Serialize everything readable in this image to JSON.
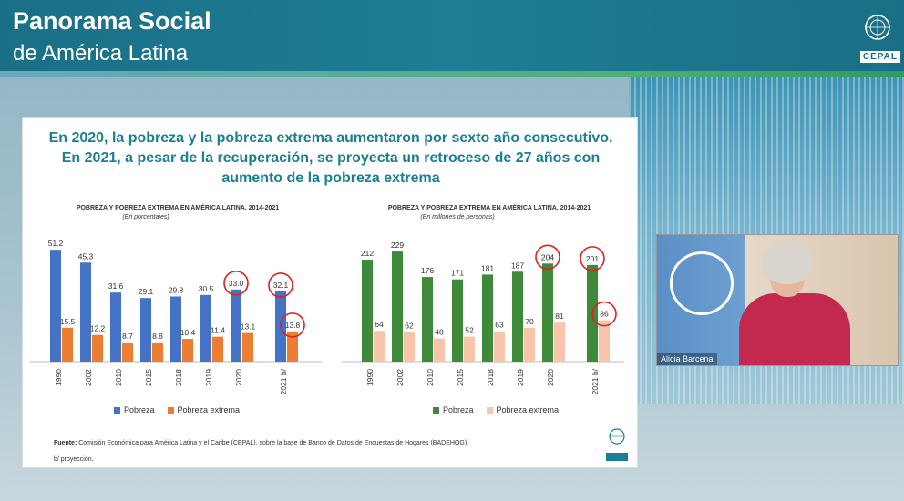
{
  "header": {
    "title_line1": "Panorama Social",
    "title_line2": "de América Latina",
    "brand_tag": "CEPAL"
  },
  "slide": {
    "title_lines": [
      "En 2020, la pobreza y la pobreza extrema aumentaron por sexto año consecutivo.",
      "En 2021, a pesar de la recuperación, se proyecta un retroceso de 27 años con",
      "aumento de la pobreza extrema"
    ],
    "source_label": "Fuente:",
    "source_text": "Comisión Económica para América Latina y el Caribe (CEPAL), sobre la base de Banco de Datos de Encuestas de Hogares (BADEHOG).",
    "note": "b/ proyección."
  },
  "chart_data": [
    {
      "type": "bar",
      "title": "POBREZA Y POBREZA EXTREMA EN AMÉRICA LATINA, 2014-2021",
      "subtitle": "(En porcentajes)",
      "categories": [
        "1990",
        "2002",
        "2010",
        "2015",
        "2018",
        "2019",
        "2020",
        "2021 b/"
      ],
      "series": [
        {
          "name": "Pobreza",
          "values": [
            51.2,
            45.3,
            31.6,
            29.1,
            29.8,
            30.5,
            33.0,
            32.1
          ],
          "color": "#4472c4"
        },
        {
          "name": "Pobreza extrema",
          "values": [
            15.5,
            12.2,
            8.7,
            8.8,
            10.4,
            11.4,
            13.1,
            13.8
          ],
          "color": "#ed7d31"
        }
      ],
      "value_labels": [
        [
          "51.2",
          "45.3",
          "31.6",
          "29.1",
          "29.8",
          "30.5",
          "33.0",
          "32.1"
        ],
        [
          "15.5",
          "12.2",
          "8.7",
          "8.8",
          "10.4",
          "11.4",
          "13.1",
          "13.8"
        ]
      ],
      "circled": [
        [
          6,
          0
        ],
        [
          7,
          0
        ],
        [
          7,
          1
        ]
      ],
      "ylim": [
        0,
        55
      ]
    },
    {
      "type": "bar",
      "title": "POBREZA Y POBREZA EXTREMA EN AMÉRICA LATINA, 2014-2021",
      "subtitle": "(En millones de personas)",
      "categories": [
        "1990",
        "2002",
        "2010",
        "2015",
        "2018",
        "2019",
        "2020",
        "2021 b/"
      ],
      "series": [
        {
          "name": "Pobreza",
          "values": [
            212,
            229,
            176,
            171,
            181,
            187,
            204,
            201
          ],
          "color": "#3e8a3a"
        },
        {
          "name": "Pobreza extrema",
          "values": [
            64,
            62,
            48,
            52,
            63,
            70,
            81,
            86
          ],
          "color": "#f8c5aa"
        }
      ],
      "value_labels": [
        [
          "212",
          "229",
          "176",
          "171",
          "181",
          "187",
          "204",
          "201"
        ],
        [
          "64",
          "62",
          "48",
          "52",
          "63",
          "70",
          "81",
          "86"
        ]
      ],
      "circled": [
        [
          6,
          0
        ],
        [
          7,
          0
        ],
        [
          7,
          1
        ]
      ],
      "ylim": [
        0,
        250
      ]
    }
  ],
  "video": {
    "name": "Alicia Barcena"
  },
  "colors": {
    "accent": "#1b7f94",
    "circle": "#e02020"
  }
}
